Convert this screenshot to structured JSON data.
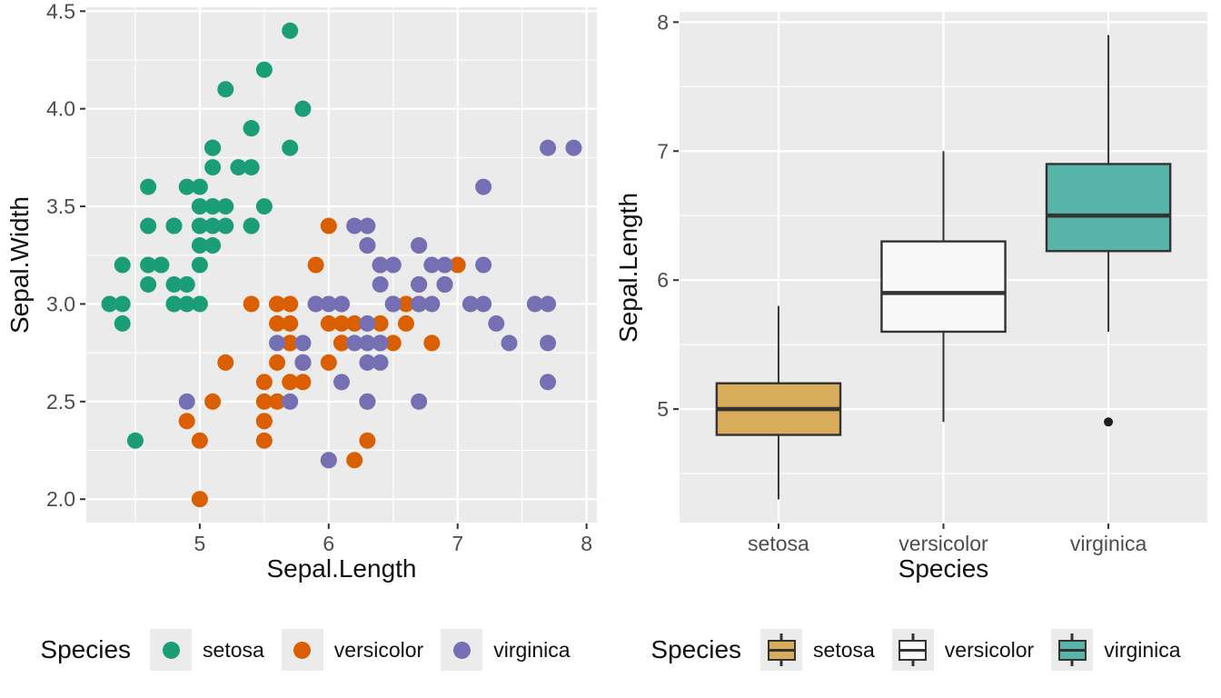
{
  "style": {
    "panel_bg": "#EBEBEB",
    "grid_color": "#FFFFFF",
    "tick_mark_color": "#333333",
    "tick_label_color": "#4D4D4D",
    "axis_title_color": "#111111",
    "box_stroke": "#333333",
    "outlier_color": "#1F1F1F"
  },
  "chart_data": [
    {
      "type": "scatter",
      "title": "",
      "xlabel": "Sepal.Length",
      "ylabel": "Sepal.Width",
      "xlim": [
        4.12,
        8.08
      ],
      "ylim": [
        1.88,
        4.52
      ],
      "grid": true,
      "x_ticks": {
        "values": [
          5,
          6,
          7,
          8
        ],
        "labels": [
          "5",
          "6",
          "7",
          "8"
        ],
        "minor": [
          4.5,
          5.5,
          6.5,
          7.5
        ]
      },
      "y_ticks": {
        "values": [
          2.0,
          2.5,
          3.0,
          3.5,
          4.0,
          4.5
        ],
        "labels": [
          "2.0",
          "2.5",
          "3.0",
          "3.5",
          "4.0",
          "4.5"
        ],
        "minor": [
          2.25,
          2.75,
          3.25,
          3.75,
          4.25
        ]
      },
      "legend": {
        "position": "bottom",
        "title": "Species",
        "items": [
          {
            "label": "setosa",
            "color": "#1B9E77"
          },
          {
            "label": "versicolor",
            "color": "#D95F02"
          },
          {
            "label": "virginica",
            "color": "#7570B3"
          }
        ]
      },
      "series": [
        {
          "name": "setosa",
          "color": "#1B9E77",
          "points": [
            [
              5.1,
              3.5
            ],
            [
              4.9,
              3.0
            ],
            [
              4.7,
              3.2
            ],
            [
              4.6,
              3.1
            ],
            [
              5.0,
              3.6
            ],
            [
              5.4,
              3.9
            ],
            [
              4.6,
              3.4
            ],
            [
              5.0,
              3.4
            ],
            [
              4.4,
              2.9
            ],
            [
              4.9,
              3.1
            ],
            [
              5.4,
              3.7
            ],
            [
              4.8,
              3.4
            ],
            [
              4.8,
              3.0
            ],
            [
              4.3,
              3.0
            ],
            [
              5.8,
              4.0
            ],
            [
              5.7,
              4.4
            ],
            [
              5.4,
              3.9
            ],
            [
              5.1,
              3.5
            ],
            [
              5.7,
              3.8
            ],
            [
              5.1,
              3.8
            ],
            [
              5.4,
              3.4
            ],
            [
              5.1,
              3.7
            ],
            [
              4.6,
              3.6
            ],
            [
              5.1,
              3.3
            ],
            [
              4.8,
              3.4
            ],
            [
              5.0,
              3.0
            ],
            [
              5.0,
              3.4
            ],
            [
              5.2,
              3.5
            ],
            [
              5.2,
              3.4
            ],
            [
              4.7,
              3.2
            ],
            [
              4.8,
              3.1
            ],
            [
              5.4,
              3.4
            ],
            [
              5.2,
              4.1
            ],
            [
              5.5,
              4.2
            ],
            [
              4.9,
              3.1
            ],
            [
              5.0,
              3.2
            ],
            [
              5.5,
              3.5
            ],
            [
              4.9,
              3.6
            ],
            [
              4.4,
              3.0
            ],
            [
              5.1,
              3.4
            ],
            [
              5.0,
              3.5
            ],
            [
              4.5,
              2.3
            ],
            [
              4.4,
              3.2
            ],
            [
              5.0,
              3.5
            ],
            [
              5.1,
              3.8
            ],
            [
              4.8,
              3.0
            ],
            [
              5.1,
              3.8
            ],
            [
              4.6,
              3.2
            ],
            [
              5.3,
              3.7
            ],
            [
              5.0,
              3.3
            ]
          ]
        },
        {
          "name": "versicolor",
          "color": "#D95F02",
          "points": [
            [
              7.0,
              3.2
            ],
            [
              6.4,
              3.2
            ],
            [
              6.9,
              3.1
            ],
            [
              5.5,
              2.3
            ],
            [
              6.5,
              2.8
            ],
            [
              5.7,
              2.8
            ],
            [
              6.3,
              3.3
            ],
            [
              4.9,
              2.4
            ],
            [
              6.6,
              2.9
            ],
            [
              5.2,
              2.7
            ],
            [
              5.0,
              2.0
            ],
            [
              5.9,
              3.0
            ],
            [
              6.0,
              2.2
            ],
            [
              6.1,
              2.9
            ],
            [
              5.6,
              2.9
            ],
            [
              6.7,
              3.1
            ],
            [
              5.6,
              3.0
            ],
            [
              5.8,
              2.7
            ],
            [
              6.2,
              2.2
            ],
            [
              5.6,
              2.5
            ],
            [
              5.9,
              3.2
            ],
            [
              6.1,
              2.8
            ],
            [
              6.3,
              2.5
            ],
            [
              6.1,
              2.8
            ],
            [
              6.4,
              2.9
            ],
            [
              6.6,
              3.0
            ],
            [
              6.8,
              2.8
            ],
            [
              6.7,
              3.0
            ],
            [
              6.0,
              2.9
            ],
            [
              5.7,
              2.6
            ],
            [
              5.5,
              2.4
            ],
            [
              5.5,
              2.4
            ],
            [
              5.8,
              2.7
            ],
            [
              6.0,
              2.7
            ],
            [
              5.4,
              3.0
            ],
            [
              6.0,
              3.4
            ],
            [
              6.7,
              3.1
            ],
            [
              6.3,
              2.3
            ],
            [
              5.6,
              3.0
            ],
            [
              5.5,
              2.5
            ],
            [
              5.5,
              2.6
            ],
            [
              6.1,
              3.0
            ],
            [
              5.8,
              2.6
            ],
            [
              5.0,
              2.3
            ],
            [
              5.6,
              2.7
            ],
            [
              5.7,
              3.0
            ],
            [
              5.7,
              2.9
            ],
            [
              6.2,
              2.9
            ],
            [
              5.1,
              2.5
            ],
            [
              5.7,
              2.8
            ]
          ]
        },
        {
          "name": "virginica",
          "color": "#7570B3",
          "points": [
            [
              6.3,
              3.3
            ],
            [
              5.8,
              2.7
            ],
            [
              7.1,
              3.0
            ],
            [
              6.3,
              2.9
            ],
            [
              6.5,
              3.0
            ],
            [
              7.6,
              3.0
            ],
            [
              4.9,
              2.5
            ],
            [
              7.3,
              2.9
            ],
            [
              6.7,
              2.5
            ],
            [
              7.2,
              3.6
            ],
            [
              6.5,
              3.2
            ],
            [
              6.4,
              2.7
            ],
            [
              6.8,
              3.0
            ],
            [
              5.7,
              2.5
            ],
            [
              5.8,
              2.8
            ],
            [
              6.4,
              3.2
            ],
            [
              6.5,
              3.0
            ],
            [
              7.7,
              3.8
            ],
            [
              7.7,
              2.6
            ],
            [
              6.0,
              2.2
            ],
            [
              6.9,
              3.2
            ],
            [
              5.6,
              2.8
            ],
            [
              7.7,
              2.8
            ],
            [
              6.3,
              2.7
            ],
            [
              6.7,
              3.3
            ],
            [
              7.2,
              3.2
            ],
            [
              6.2,
              2.8
            ],
            [
              6.1,
              3.0
            ],
            [
              6.4,
              2.8
            ],
            [
              7.2,
              3.0
            ],
            [
              7.4,
              2.8
            ],
            [
              7.9,
              3.8
            ],
            [
              6.4,
              2.8
            ],
            [
              6.3,
              2.8
            ],
            [
              6.1,
              2.6
            ],
            [
              7.7,
              3.0
            ],
            [
              6.3,
              3.4
            ],
            [
              6.4,
              3.1
            ],
            [
              6.0,
              3.0
            ],
            [
              6.9,
              3.1
            ],
            [
              6.7,
              3.1
            ],
            [
              6.9,
              3.1
            ],
            [
              5.8,
              2.7
            ],
            [
              6.8,
              3.2
            ],
            [
              6.7,
              3.3
            ],
            [
              6.7,
              3.0
            ],
            [
              6.3,
              2.5
            ],
            [
              6.5,
              3.0
            ],
            [
              6.2,
              3.4
            ],
            [
              5.9,
              3.0
            ]
          ]
        }
      ]
    },
    {
      "type": "box",
      "title": "",
      "xlabel": "Species",
      "ylabel": "Sepal.Length",
      "ylim": [
        4.12,
        8.08
      ],
      "grid": true,
      "categories": [
        "setosa",
        "versicolor",
        "virginica"
      ],
      "y_ticks": {
        "values": [
          5,
          6,
          7,
          8
        ],
        "labels": [
          "5",
          "6",
          "7",
          "8"
        ],
        "minor": [
          4.5,
          5.5,
          6.5,
          7.5
        ]
      },
      "legend": {
        "position": "bottom",
        "title": "Species",
        "items": [
          {
            "label": "setosa",
            "color": "#D9AC5B"
          },
          {
            "label": "versicolor",
            "color": "#F8F8F8"
          },
          {
            "label": "virginica",
            "color": "#57B4A8"
          }
        ]
      },
      "stats": [
        {
          "category": "setosa",
          "fill": "#D9AC5B",
          "min": 4.3,
          "q1": 4.8,
          "median": 5.0,
          "q3": 5.2,
          "max": 5.8,
          "outliers": []
        },
        {
          "category": "versicolor",
          "fill": "#F8F8F8",
          "min": 4.9,
          "q1": 5.6,
          "median": 5.9,
          "q3": 6.3,
          "max": 7.0,
          "outliers": []
        },
        {
          "category": "virginica",
          "fill": "#57B4A8",
          "min": 5.6,
          "q1": 6.225,
          "median": 6.5,
          "q3": 6.9,
          "max": 7.9,
          "outliers": [
            4.9
          ]
        }
      ]
    }
  ]
}
